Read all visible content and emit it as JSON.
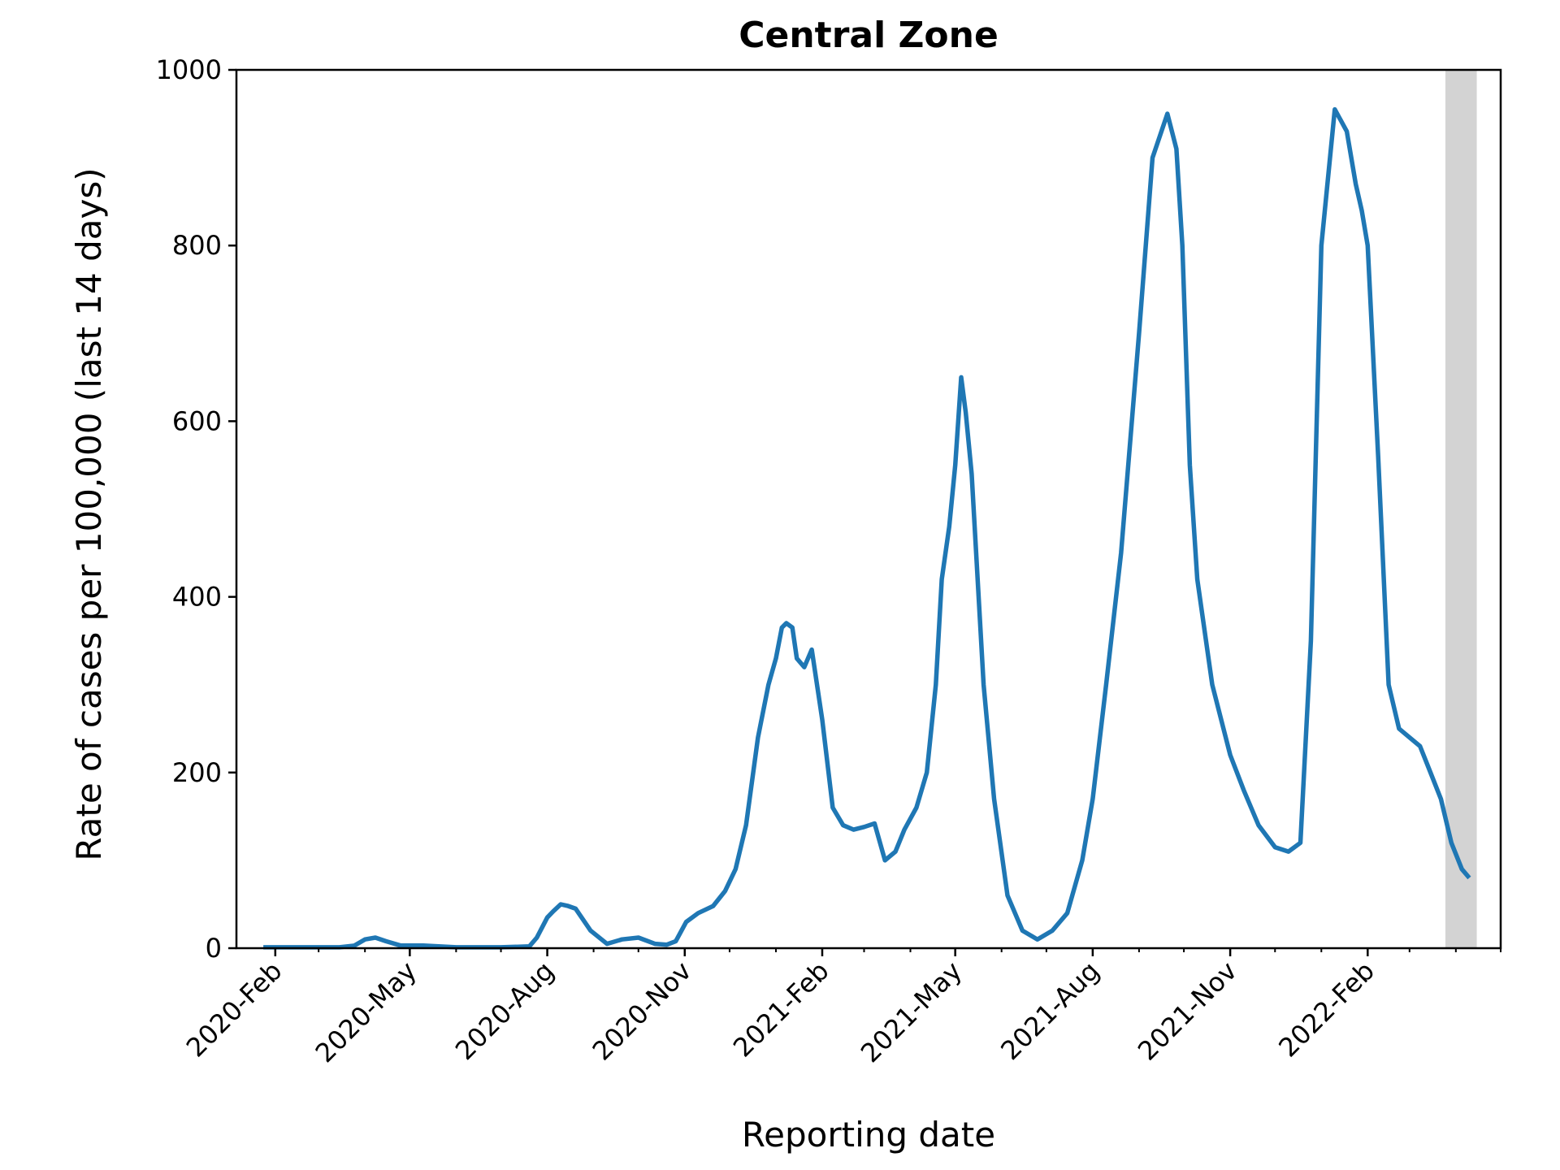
{
  "chart_data": {
    "type": "line",
    "title": "Central Zone",
    "xlabel": "Reporting date",
    "ylabel": "Rate of cases per 100,000 (last 14 days)",
    "ylim": [
      0,
      1000
    ],
    "xlim": [
      "2020-01-06",
      "2022-05-01"
    ],
    "yticks": [
      0,
      200,
      400,
      600,
      800,
      1000
    ],
    "xticks": [
      {
        "date": "2020-02-01",
        "label": "2020-Feb"
      },
      {
        "date": "2020-05-01",
        "label": "2020-May"
      },
      {
        "date": "2020-08-01",
        "label": "2020-Aug"
      },
      {
        "date": "2020-11-01",
        "label": "2020-Nov"
      },
      {
        "date": "2021-02-01",
        "label": "2021-Feb"
      },
      {
        "date": "2021-05-01",
        "label": "2021-May"
      },
      {
        "date": "2021-08-01",
        "label": "2021-Aug"
      },
      {
        "date": "2021-11-01",
        "label": "2021-Nov"
      },
      {
        "date": "2022-02-01",
        "label": "2022-Feb"
      }
    ],
    "grid": false,
    "colors": {
      "line": "#1f77b4",
      "shade": "#d3d3d3"
    },
    "shaded_region": [
      "2022-03-25",
      "2022-04-15"
    ],
    "series": [
      {
        "x": [
          "2020-01-24",
          "2020-02-15",
          "2020-03-01",
          "2020-03-15",
          "2020-03-25",
          "2020-04-01",
          "2020-04-08",
          "2020-04-15",
          "2020-04-25",
          "2020-05-10",
          "2020-06-01",
          "2020-07-01",
          "2020-07-20",
          "2020-07-25",
          "2020-08-01",
          "2020-08-05",
          "2020-08-10",
          "2020-08-15",
          "2020-08-20",
          "2020-08-30",
          "2020-09-10",
          "2020-09-20",
          "2020-10-01",
          "2020-10-12",
          "2020-10-20",
          "2020-10-26",
          "2020-11-02",
          "2020-11-10",
          "2020-11-20",
          "2020-11-28",
          "2020-12-05",
          "2020-12-12",
          "2020-12-20",
          "2020-12-27",
          "2021-01-01",
          "2021-01-05",
          "2021-01-08",
          "2021-01-12",
          "2021-01-15",
          "2021-01-20",
          "2021-01-25",
          "2021-02-01",
          "2021-02-08",
          "2021-02-15",
          "2021-02-22",
          "2021-03-01",
          "2021-03-08",
          "2021-03-15",
          "2021-03-22",
          "2021-03-28",
          "2021-04-05",
          "2021-04-12",
          "2021-04-18",
          "2021-04-22",
          "2021-04-27",
          "2021-05-01",
          "2021-05-05",
          "2021-05-08",
          "2021-05-12",
          "2021-05-20",
          "2021-05-27",
          "2021-06-05",
          "2021-06-15",
          "2021-06-25",
          "2021-07-05",
          "2021-07-15",
          "2021-07-25",
          "2021-08-01",
          "2021-08-10",
          "2021-08-20",
          "2021-09-01",
          "2021-09-10",
          "2021-09-20",
          "2021-09-26",
          "2021-09-30",
          "2021-10-05",
          "2021-10-10",
          "2021-10-20",
          "2021-11-01",
          "2021-11-10",
          "2021-11-20",
          "2021-12-01",
          "2021-12-10",
          "2021-12-18",
          "2021-12-25",
          "2022-01-01",
          "2022-01-10",
          "2022-01-18",
          "2022-01-24",
          "2022-01-28",
          "2022-02-01",
          "2022-02-08",
          "2022-02-15",
          "2022-02-22",
          "2022-03-01",
          "2022-03-08",
          "2022-03-15",
          "2022-03-22",
          "2022-03-29",
          "2022-04-05",
          "2022-04-10"
        ],
        "y": [
          1,
          1,
          1,
          1,
          3,
          10,
          12,
          8,
          3,
          3,
          1,
          1,
          2,
          12,
          35,
          42,
          50,
          48,
          45,
          20,
          5,
          10,
          12,
          5,
          4,
          8,
          30,
          40,
          48,
          65,
          90,
          140,
          240,
          300,
          330,
          365,
          370,
          365,
          330,
          320,
          340,
          260,
          160,
          140,
          135,
          138,
          142,
          100,
          110,
          135,
          160,
          200,
          300,
          420,
          480,
          550,
          650,
          610,
          540,
          300,
          170,
          60,
          20,
          10,
          20,
          40,
          100,
          170,
          300,
          450,
          700,
          900,
          950,
          910,
          800,
          550,
          420,
          300,
          220,
          180,
          140,
          115,
          110,
          120,
          350,
          800,
          955,
          930,
          870,
          840,
          800,
          560,
          300,
          250,
          240,
          230,
          200,
          170,
          120,
          90,
          80
        ]
      }
    ]
  }
}
